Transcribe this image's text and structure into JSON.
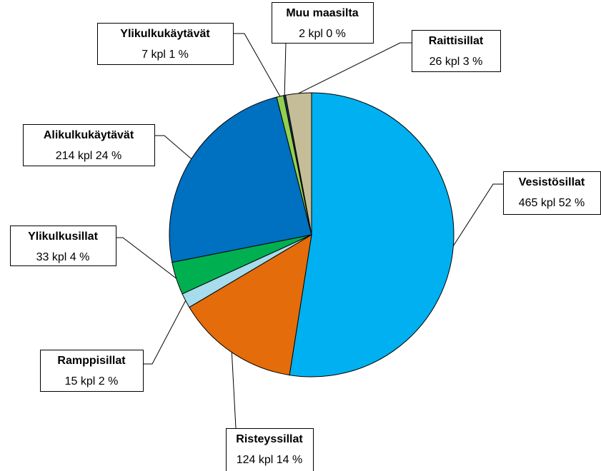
{
  "chart_data": {
    "type": "pie",
    "categories": [
      "Vesistösillat",
      "Risteyssillat",
      "Ramppisillat",
      "Ylikulkusillat",
      "Alikulkukäytävät",
      "Ylikulkukäytävät",
      "Muu maasilta",
      "Raittisillat"
    ],
    "values": [
      465,
      124,
      15,
      33,
      214,
      7,
      2,
      26
    ],
    "value_labels": [
      "465 kpl 52 %",
      "124 kpl 14 %",
      "15 kpl 2 %",
      "33 kpl 4 %",
      "214 kpl 24 %",
      "7 kpl 1 %",
      "2 kpl  0 %",
      "26 kpl 3 %"
    ],
    "colors": [
      "#00b0f0",
      "#e46c0a",
      "#a6dcec",
      "#00b050",
      "#0070c0",
      "#92d050",
      "#17375e",
      "#c4bd97"
    ]
  }
}
